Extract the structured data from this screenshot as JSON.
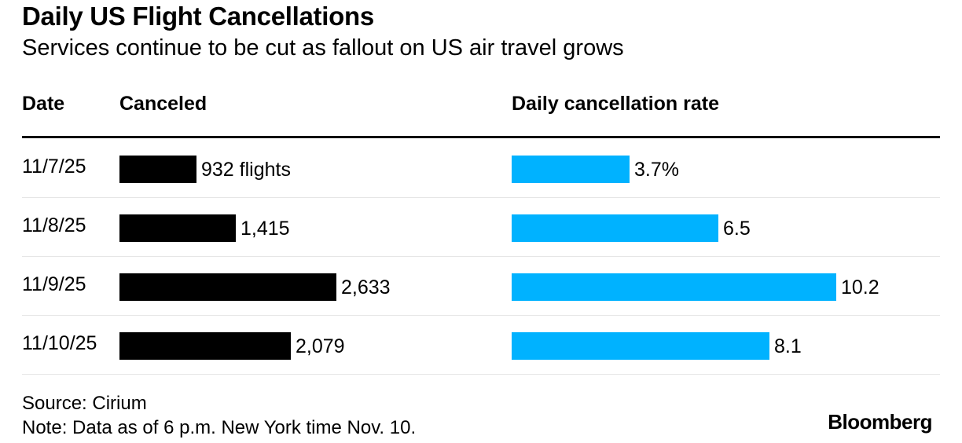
{
  "title": "Daily US Flight Cancellations",
  "subtitle": "Services continue to be cut as fallout on US air travel grows",
  "columns": {
    "date": "Date",
    "canceled": "Canceled",
    "rate": "Daily cancellation rate"
  },
  "rows": [
    {
      "date": "11/7/25",
      "canceled_label": "932 flights",
      "rate_label": "3.7%"
    },
    {
      "date": "11/8/25",
      "canceled_label": "1,415",
      "rate_label": "6.5"
    },
    {
      "date": "11/9/25",
      "canceled_label": "2,633",
      "rate_label": "10.2"
    },
    {
      "date": "11/10/25",
      "canceled_label": "2,079",
      "rate_label": "8.1"
    }
  ],
  "source": "Source: Cirium",
  "note": "Note: Data as of 6 p.m. New York time Nov. 10.",
  "logo": "Bloomberg",
  "colors": {
    "canceled_bar": "#000000",
    "rate_bar": "#00b2ff"
  },
  "chart_data": {
    "type": "bar",
    "categories": [
      "11/7/25",
      "11/8/25",
      "11/9/25",
      "11/10/25"
    ],
    "series": [
      {
        "name": "Canceled",
        "values": [
          932,
          1415,
          2633,
          2079
        ]
      },
      {
        "name": "Daily cancellation rate",
        "values": [
          3.7,
          6.5,
          10.2,
          8.1
        ]
      }
    ],
    "title": "Daily US Flight Cancellations",
    "subtitle": "Services continue to be cut as fallout on US air travel grows",
    "xlabel": "",
    "ylabel": ""
  }
}
